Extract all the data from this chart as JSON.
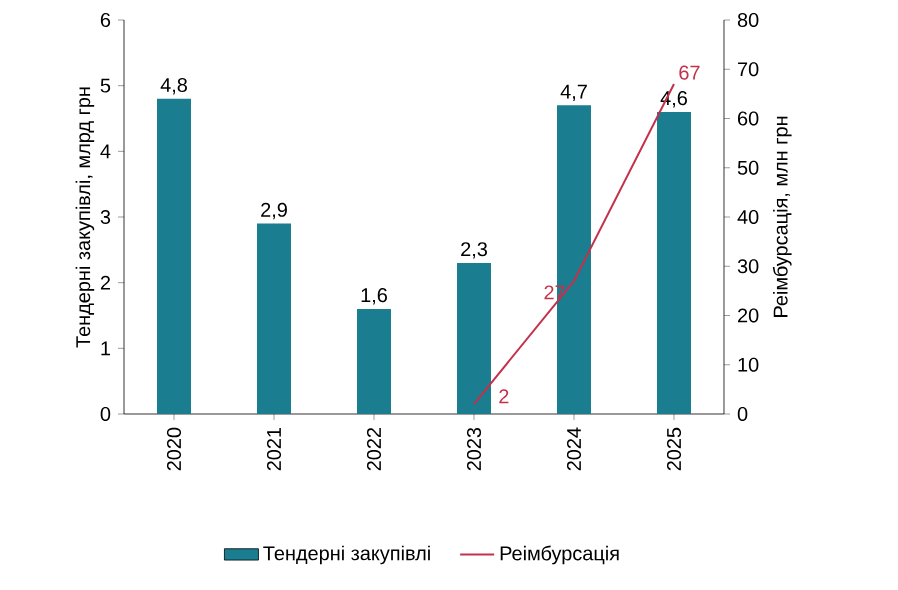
{
  "chart_data": {
    "type": "bar",
    "categories": [
      "2020",
      "2021",
      "2022",
      "2023",
      "2024",
      "2025"
    ],
    "ylabel": "Тендерні закупівлі, млрд грн",
    "y2label": "Реімбурсація, млн грн",
    "ylim": [
      0,
      6
    ],
    "yticks": [
      0,
      1,
      2,
      3,
      4,
      5,
      6
    ],
    "y2lim": [
      0,
      80
    ],
    "y2ticks": [
      0,
      10,
      20,
      30,
      40,
      50,
      60,
      70,
      80
    ],
    "legend": "bottom",
    "series": [
      {
        "name": "Тендерні закупівлі",
        "color": "#1b7d90",
        "values": [
          4.8,
          2.9,
          1.6,
          2.3,
          4.7,
          4.6
        ],
        "value_labels": [
          "4,8",
          "2,9",
          "1,6",
          "2,3",
          "4,7",
          "4,6"
        ]
      },
      {
        "name": "Реімбурсація",
        "type": "line",
        "axis": "y2",
        "color": "#c4314b",
        "values": [
          null,
          null,
          null,
          2,
          27,
          67
        ],
        "value_labels": [
          null,
          null,
          null,
          "2",
          "27",
          "67"
        ]
      }
    ]
  }
}
